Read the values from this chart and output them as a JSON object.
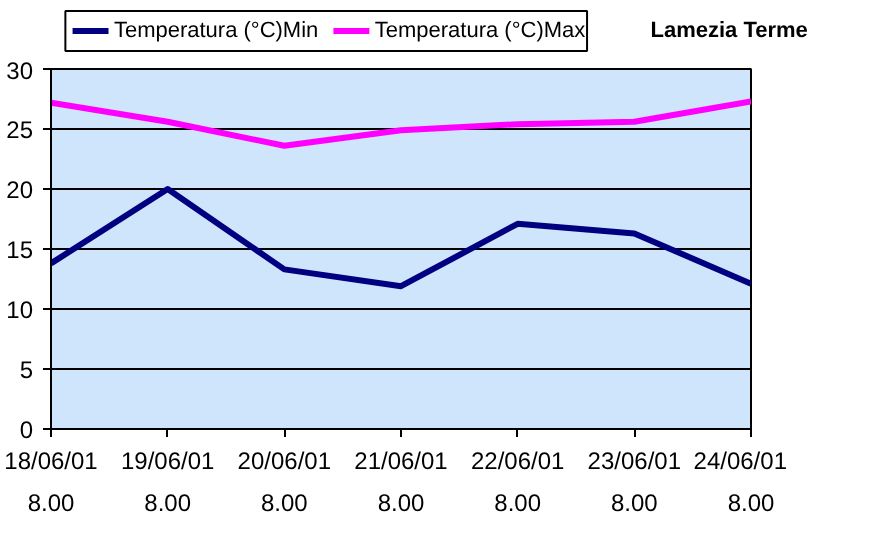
{
  "chart_data": {
    "type": "line",
    "title": "Lamezia Terme",
    "categories": [
      "18/06/01\n8.00",
      "19/06/01\n8.00",
      "20/06/01\n8.00",
      "21/06/01\n8.00",
      "22/06/01\n8.00",
      "23/06/01\n8.00",
      "24/06/01\n8.00"
    ],
    "series": [
      {
        "name": "Temperatura (°C)Min",
        "color": "#000080",
        "values": [
          13.8,
          20.0,
          13.3,
          11.9,
          17.1,
          16.3,
          12.1
        ]
      },
      {
        "name": "Temperatura (°C)Max",
        "color": "#ff00ff",
        "values": [
          27.2,
          25.6,
          23.6,
          24.9,
          25.4,
          25.6,
          27.3
        ]
      }
    ],
    "ylim": [
      0,
      30
    ],
    "yticks": [
      0,
      5,
      10,
      15,
      20,
      25,
      30
    ],
    "grid": "y",
    "legend": "top",
    "marker": "none",
    "line_style": "solid"
  }
}
